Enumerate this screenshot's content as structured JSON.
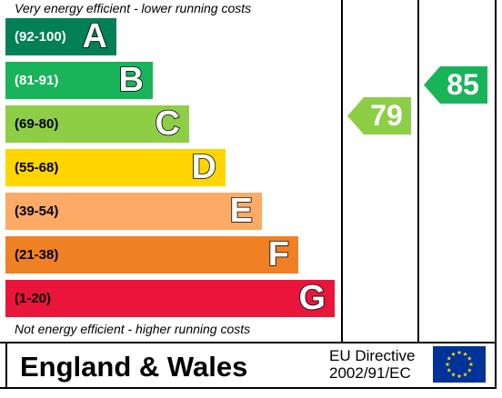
{
  "header": {
    "caption_top": "Very energy efficient - lower running costs"
  },
  "bands": [
    {
      "range": "(92-100)",
      "letter": "A",
      "color": "#008054"
    },
    {
      "range": "(81-91)",
      "letter": "B",
      "color": "#19b459"
    },
    {
      "range": "(69-80)",
      "letter": "C",
      "color": "#8dce46"
    },
    {
      "range": "(55-68)",
      "letter": "D",
      "color": "#ffd500"
    },
    {
      "range": "(39-54)",
      "letter": "E",
      "color": "#fcaa65"
    },
    {
      "range": "(21-38)",
      "letter": "F",
      "color": "#ef8023"
    },
    {
      "range": "(1-20)",
      "letter": "G",
      "color": "#e9153b"
    }
  ],
  "caption_bottom": "Not energy efficient - higher running costs",
  "ratings": {
    "current": {
      "value": "79",
      "color": "#8dce46"
    },
    "potential": {
      "value": "85",
      "color": "#19b459"
    }
  },
  "footer": {
    "region": "England & Wales",
    "directive_line1": "EU Directive",
    "directive_line2": "2002/91/EC",
    "flag_color": "#003399",
    "star_color": "#ffdd00"
  }
}
